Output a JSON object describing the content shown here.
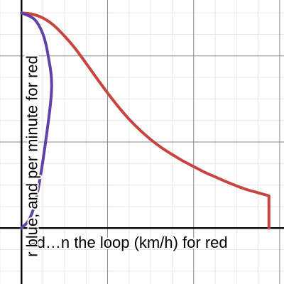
{
  "chart_data": {
    "type": "line",
    "title": "",
    "xlabel": "ed…n the loop (km/h) for red",
    "ylabel": "r blue, and per minute for red",
    "xlim": [
      -0.5,
      6.1
    ],
    "ylim": [
      -1.3,
      5.3
    ],
    "grid": true,
    "legend": "none",
    "series": [
      {
        "color": "#c74440",
        "points": [
          [
            0.0,
            5.0
          ],
          [
            0.25,
            4.97
          ],
          [
            0.5,
            4.88
          ],
          [
            0.75,
            4.71
          ],
          [
            1.0,
            4.46
          ],
          [
            1.25,
            4.17
          ],
          [
            1.5,
            3.83
          ],
          [
            1.75,
            3.48
          ],
          [
            2.0,
            3.14
          ],
          [
            2.25,
            2.82
          ],
          [
            2.5,
            2.53
          ],
          [
            2.75,
            2.28
          ],
          [
            3.0,
            2.06
          ],
          [
            3.25,
            1.87
          ],
          [
            3.5,
            1.71
          ],
          [
            3.75,
            1.56
          ],
          [
            4.0,
            1.43
          ],
          [
            4.25,
            1.3
          ],
          [
            4.5,
            1.19
          ],
          [
            4.75,
            1.08
          ],
          [
            5.0,
            0.98
          ],
          [
            5.25,
            0.89
          ],
          [
            5.5,
            0.82
          ],
          [
            5.75,
            0.75
          ],
          [
            5.75,
            0.0
          ]
        ]
      },
      {
        "color": "#6042a6",
        "points": [
          [
            0.0,
            0.0
          ],
          [
            0.2,
            0.24
          ],
          [
            0.38,
            0.87
          ],
          [
            0.6,
            2.3
          ],
          [
            0.7,
            3.3
          ],
          [
            0.62,
            4.0
          ],
          [
            0.5,
            4.5
          ],
          [
            0.3,
            4.85
          ],
          [
            0.0,
            5.0
          ]
        ]
      }
    ]
  }
}
